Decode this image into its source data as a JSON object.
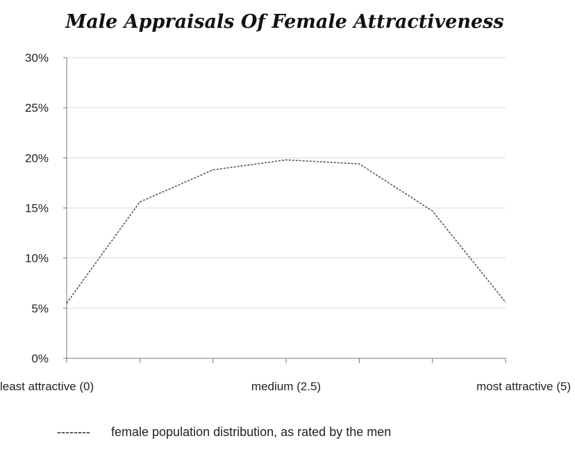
{
  "chart_data": {
    "type": "line",
    "title": "Male Appraisals Of Female Attractiveness",
    "xlabel": "",
    "ylabel": "",
    "x": [
      0,
      1,
      2,
      3,
      4,
      5,
      6
    ],
    "category_labels": [
      {
        "x": 0,
        "label": "least attractive (0)"
      },
      {
        "x": 3,
        "label": "medium (2.5)"
      },
      {
        "x": 6,
        "label": "most attractive (5)"
      }
    ],
    "ylim": [
      0,
      30
    ],
    "yticks": [
      0,
      5,
      10,
      15,
      20,
      25,
      30
    ],
    "ytick_labels": [
      "0%",
      "5%",
      "10%",
      "15%",
      "20%",
      "25%",
      "30%"
    ],
    "grid": true,
    "series": [
      {
        "name": "female population  distribution, as rated by the men",
        "values": [
          5.5,
          15.6,
          18.8,
          19.8,
          19.4,
          14.7,
          5.6
        ],
        "color": "#555555",
        "style": "dashed"
      }
    ],
    "legend": {
      "position": "bottom",
      "marker": "--------",
      "label": "female population  distribution, as rated by the men"
    }
  }
}
